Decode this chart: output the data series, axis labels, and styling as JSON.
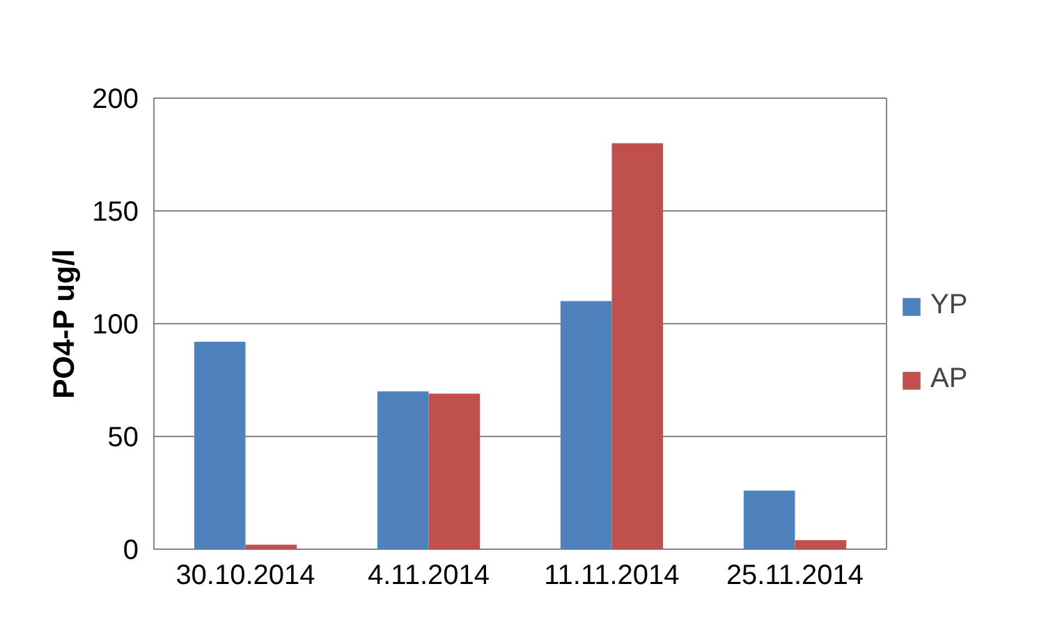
{
  "chart_data": {
    "type": "bar",
    "ylabel": "PO4-P ug/l",
    "categories": [
      "30.10.2014",
      "4.11.2014",
      "11.11.2014",
      "25.11.2014"
    ],
    "series": [
      {
        "name": "YP",
        "color": "#4f81bd",
        "values": [
          92,
          70,
          110,
          26
        ]
      },
      {
        "name": "AP",
        "color": "#c0504d",
        "values": [
          2,
          69,
          180,
          4
        ]
      }
    ],
    "ylim": [
      0,
      200
    ],
    "yticks": [
      0,
      50,
      100,
      150,
      200
    ],
    "grid": "y",
    "legend": "right"
  }
}
